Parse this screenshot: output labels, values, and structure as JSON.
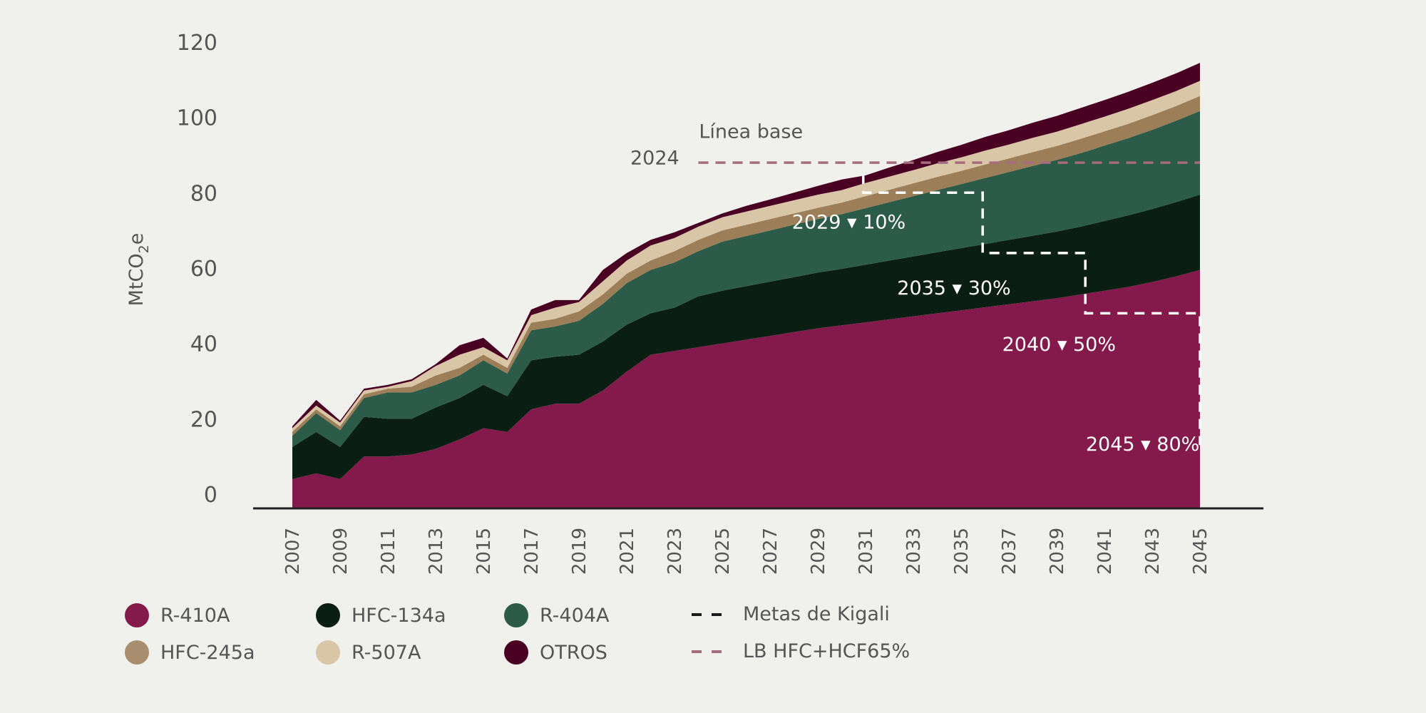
{
  "chart_data": {
    "type": "area",
    "stacked": true,
    "ylabel": "MtCO2e",
    "ylim": [
      0,
      120
    ],
    "y_ticks": [
      "0",
      "20",
      "40",
      "60",
      "80",
      "100",
      "120"
    ],
    "x_tick_labels": [
      "2007",
      "2009",
      "2011",
      "2013",
      "2015",
      "2017",
      "2019",
      "2021",
      "2023",
      "2025",
      "2027",
      "2029",
      "2031",
      "2033",
      "2035",
      "2037",
      "2039",
      "2041",
      "2043",
      "2045"
    ],
    "x": [
      2007,
      2008,
      2009,
      2010,
      2011,
      2012,
      2013,
      2014,
      2015,
      2016,
      2017,
      2018,
      2019,
      2020,
      2021,
      2022,
      2023,
      2024,
      2025,
      2026,
      2027,
      2028,
      2029,
      2030,
      2031,
      2032,
      2033,
      2034,
      2035,
      2036,
      2037,
      2038,
      2039,
      2040,
      2041,
      2042,
      2043,
      2044,
      2045
    ],
    "series": [
      {
        "name": "R-410A",
        "color": "#841a4b",
        "values": [
          4,
          5.5,
          4,
          10,
          10,
          10.5,
          12,
          14.5,
          17.5,
          16.5,
          22.5,
          24,
          24,
          27.5,
          32.5,
          37,
          38,
          39,
          40,
          41,
          42,
          43,
          44,
          44.8,
          45.6,
          46.4,
          47.2,
          48,
          48.8,
          49.6,
          50.4,
          51.2,
          52,
          53,
          54,
          55,
          56.3,
          57.8,
          59.5
        ]
      },
      {
        "name": "HFC-134a",
        "color": "#0b1e13",
        "values": [
          8.5,
          11,
          8.5,
          10.5,
          10,
          9.5,
          11,
          11,
          11.5,
          9.5,
          13,
          12.5,
          13,
          13,
          12.5,
          11,
          11.5,
          13.5,
          14,
          14.2,
          14.4,
          14.6,
          14.8,
          15,
          15.3,
          15.6,
          15.9,
          16.2,
          16.5,
          16.8,
          17.1,
          17.4,
          17.7,
          18,
          18.5,
          19,
          19.4,
          19.7,
          20
        ]
      },
      {
        "name": "R-404A",
        "color": "#2c5b49",
        "values": [
          3,
          5,
          4.5,
          5,
          7,
          7,
          6,
          6,
          6.5,
          6,
          8,
          8,
          9,
          10,
          11,
          11.5,
          12,
          12,
          13,
          13.3,
          13.6,
          13.9,
          14.2,
          14.5,
          15,
          15.5,
          16,
          16.5,
          17,
          17.5,
          18,
          18.5,
          19,
          19.5,
          20,
          20.5,
          21,
          21.6,
          22.2
        ]
      },
      {
        "name": "HFC-245a",
        "color": "#9c7e58",
        "values": [
          1,
          1,
          1,
          1,
          1,
          1.5,
          2.5,
          2,
          1.5,
          1.5,
          2,
          2,
          2.5,
          2.5,
          2.5,
          2.5,
          3,
          3,
          3,
          3,
          3,
          3,
          3,
          3.1,
          3.2,
          3.3,
          3.4,
          3.5,
          3.5,
          3.6,
          3.6,
          3.7,
          3.7,
          3.8,
          3.8,
          3.8,
          3.9,
          3.9,
          4
        ]
      },
      {
        "name": "R-507A",
        "color": "#d9c6a6",
        "values": [
          1,
          1,
          1,
          1,
          0.5,
          1.5,
          2.5,
          3.5,
          2,
          2,
          2,
          3,
          2.5,
          3.5,
          3.5,
          4,
          3.5,
          3.5,
          3.5,
          3.5,
          3.5,
          3.5,
          3.5,
          3.3,
          3.5,
          3.5,
          3.5,
          3.6,
          3.6,
          3.7,
          3.7,
          3.8,
          3.8,
          3.9,
          3.9,
          4,
          4,
          4,
          4
        ]
      },
      {
        "name": "OTROS",
        "color": "#4a0023",
        "values": [
          0.5,
          1.5,
          0.5,
          0.5,
          0.5,
          0.5,
          0.5,
          2.5,
          2.5,
          0.5,
          1.5,
          2,
          0.5,
          3,
          2,
          1.5,
          1.5,
          1,
          1,
          1.5,
          1.7,
          2,
          2.3,
          2.8,
          2,
          2.4,
          2.7,
          3,
          3.3,
          3.6,
          3.8,
          4,
          4.2,
          4.3,
          4.4,
          4.5,
          4.6,
          4.7,
          4.8
        ]
      }
    ],
    "lines": [
      {
        "name": "Metas de Kigali",
        "style": "dashed",
        "color": "#ffffff",
        "points": [
          [
            2030.9,
            85
          ],
          [
            2030.9,
            80
          ],
          [
            2035.9,
            80
          ],
          [
            2035.9,
            64
          ],
          [
            2040.2,
            64
          ],
          [
            2040.2,
            48
          ],
          [
            2045,
            48
          ],
          [
            2045,
            13
          ]
        ]
      },
      {
        "name": "LB HFC+HCF65%",
        "style": "dashed",
        "color": "#a56b7e",
        "points": [
          [
            2024,
            88
          ],
          [
            2045,
            88
          ]
        ]
      }
    ],
    "annotations": [
      {
        "text": "Línea base",
        "x": 2026.2,
        "y": 94.5,
        "color": "dark"
      },
      {
        "text": "2024",
        "x": 2023.2,
        "y": 87.5,
        "color": "dark",
        "anchor": "end"
      },
      {
        "text": "2029 ▾ 10%",
        "x": 2030.3,
        "y": 70.5,
        "color": "white",
        "anchor": "middle"
      },
      {
        "text": "2035 ▾ 30%",
        "x": 2034.7,
        "y": 53,
        "color": "white",
        "anchor": "middle"
      },
      {
        "text": "2040 ▾ 50%",
        "x": 2039.1,
        "y": 38,
        "color": "white",
        "anchor": "middle"
      },
      {
        "text": "2045 ▾ 80%",
        "x": 2042.6,
        "y": 11.5,
        "color": "white",
        "anchor": "middle"
      }
    ],
    "legend_position": "bottom-left",
    "grid": false
  },
  "legend": [
    {
      "label": "R-410A",
      "kind": "dot",
      "color": "#841a4b"
    },
    {
      "label": "HFC-134a",
      "kind": "dot",
      "color": "#0b1e13"
    },
    {
      "label": "R-404A",
      "kind": "dot",
      "color": "#2c5b49"
    },
    {
      "label": "Metas de Kigali",
      "kind": "dash",
      "color": "#1a1a1a"
    },
    {
      "label": "HFC-245a",
      "kind": "dot",
      "color": "#a88e6e"
    },
    {
      "label": "R-507A",
      "kind": "dot",
      "color": "#d9c6a6"
    },
    {
      "label": "OTROS",
      "kind": "dot",
      "color": "#4a0023"
    },
    {
      "label": "LB HFC+HCF65%",
      "kind": "dash",
      "color": "#a56b7e"
    }
  ]
}
